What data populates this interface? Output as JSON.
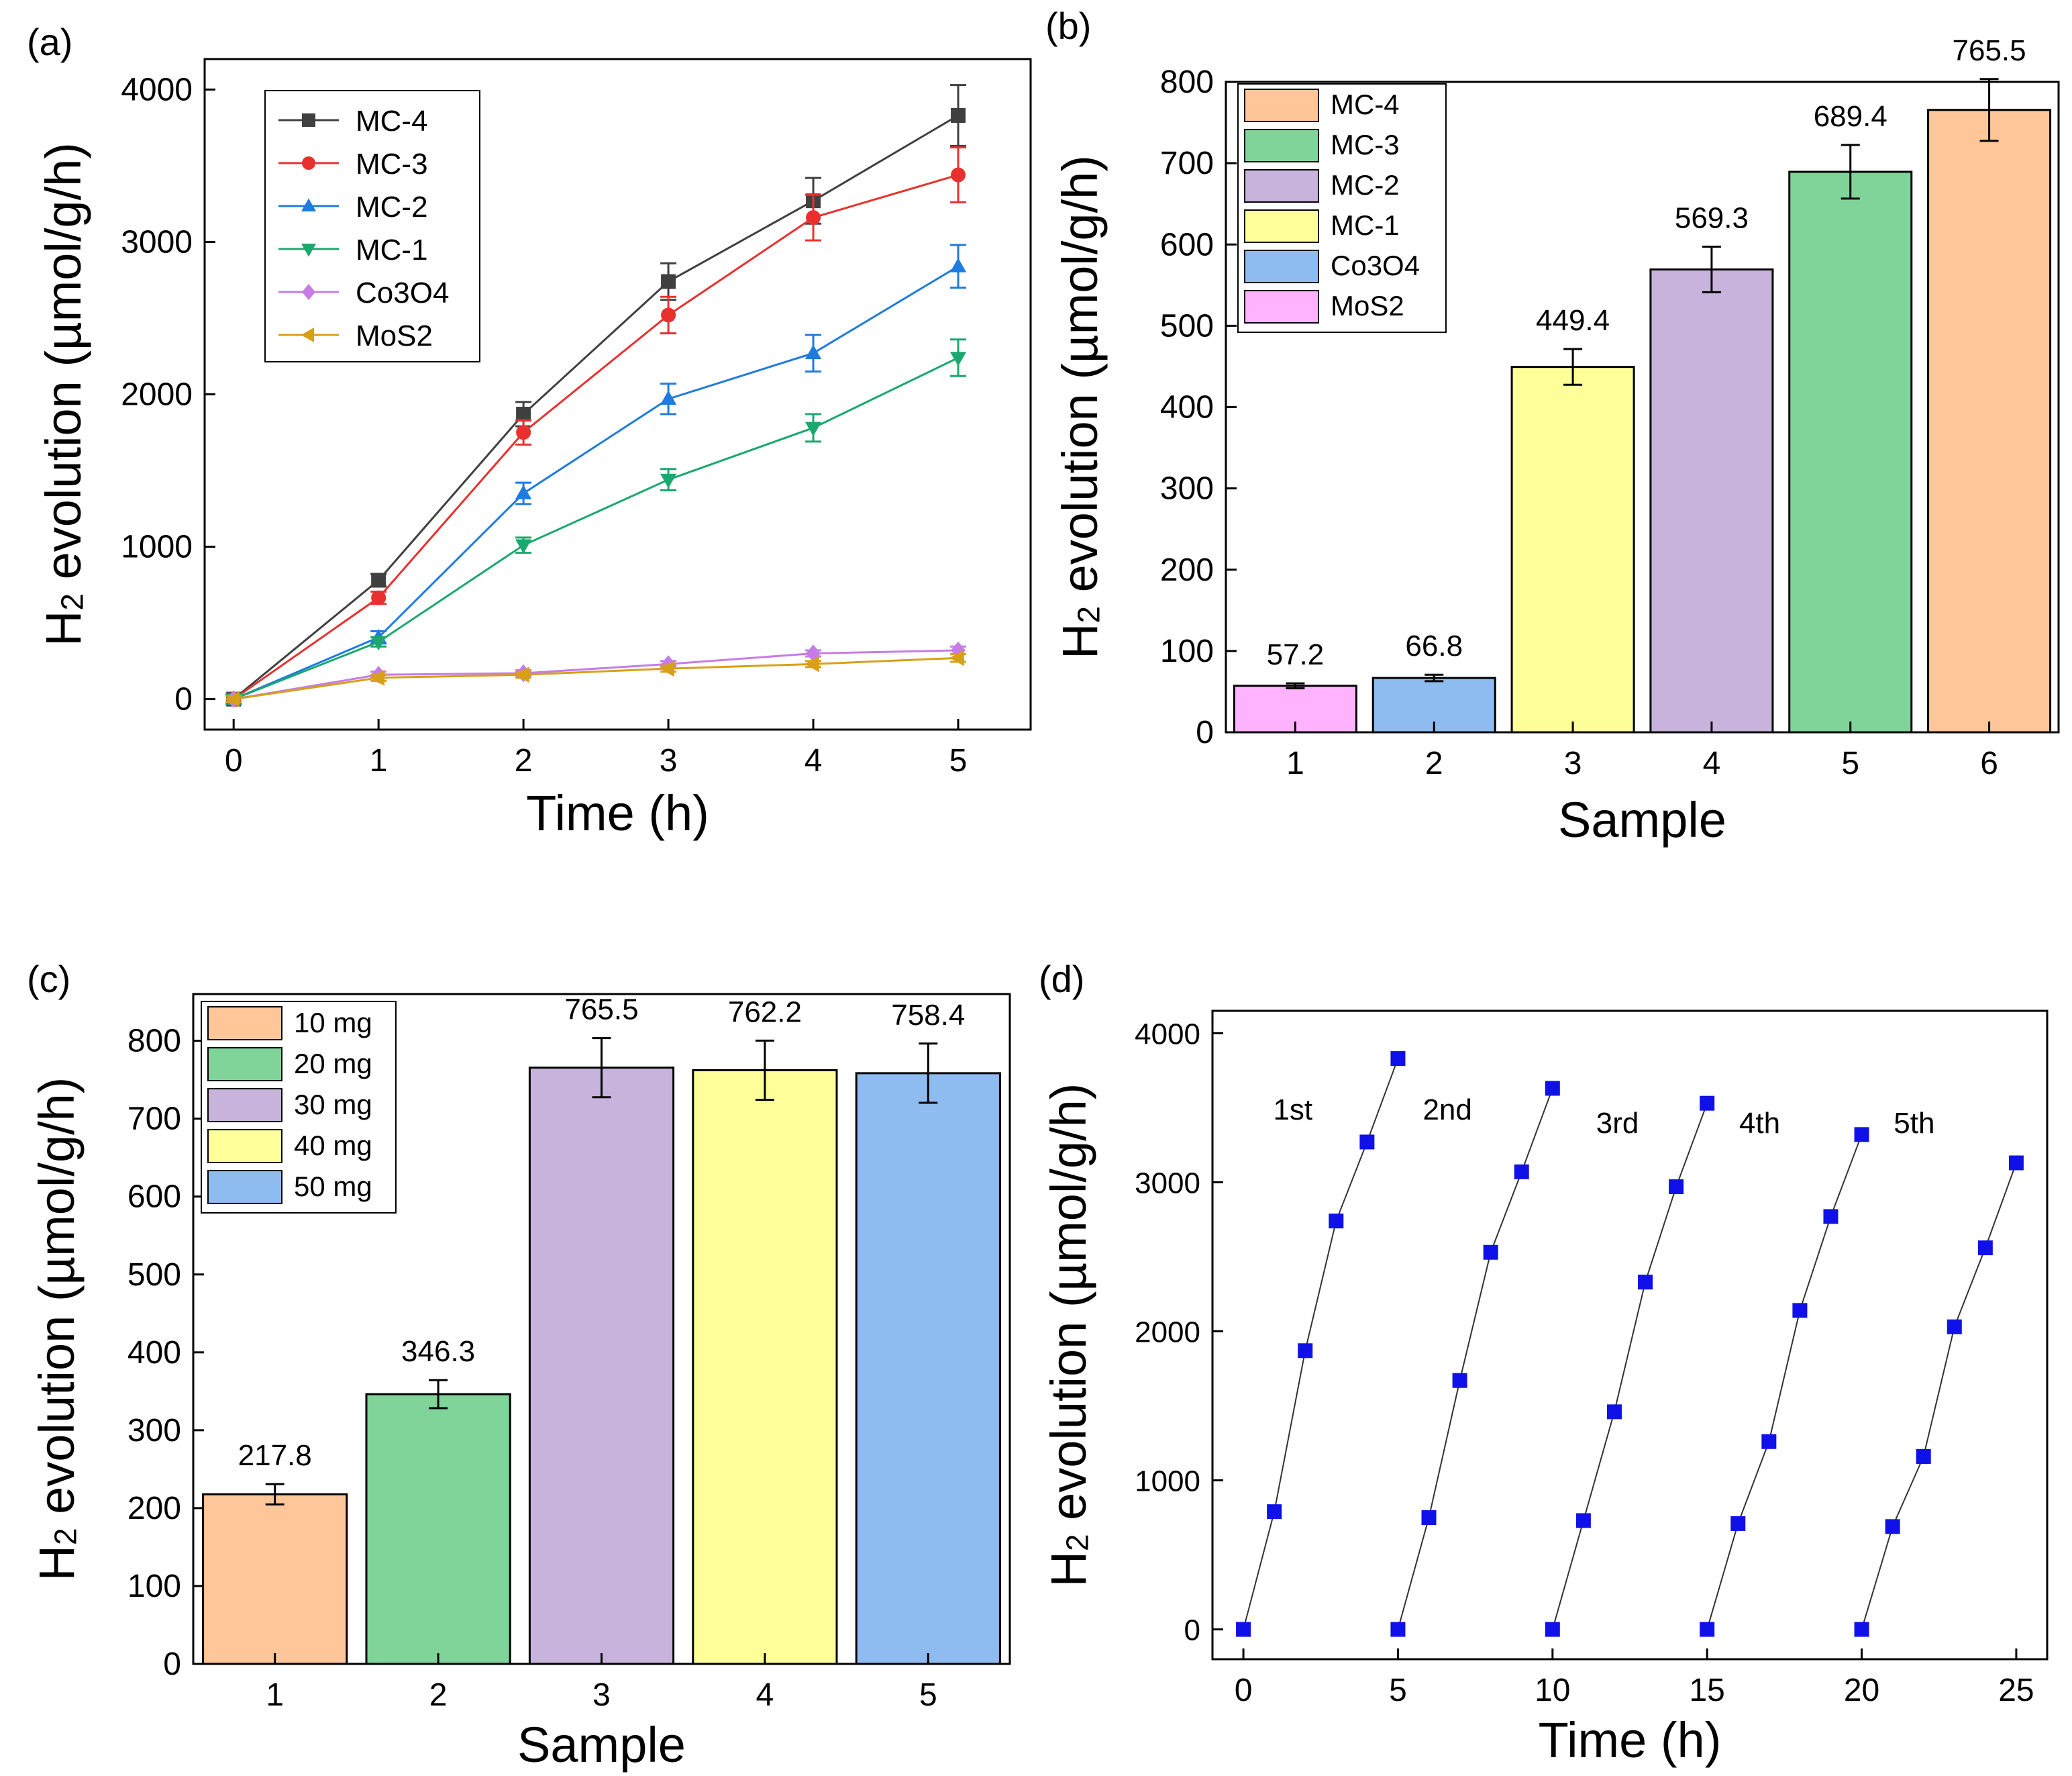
{
  "figure": {
    "panels": [
      {
        "label": "(a)",
        "chart_data": {
          "type": "line",
          "xlabel": "Time (h)",
          "ylabel_main": "H",
          "ylabel_sub": "2",
          "ylabel_rest": " evolution (µmol/g/h)",
          "xlim": [
            -0.2,
            5.5
          ],
          "ylim": [
            -200,
            4200
          ],
          "xticks": [
            0,
            1,
            2,
            3,
            4,
            5
          ],
          "yticks": [
            0,
            1000,
            2000,
            3000,
            4000
          ],
          "legend_position": "top-left",
          "x": [
            0,
            1,
            2,
            3,
            4,
            5
          ],
          "series": [
            {
              "name": "MC-4",
              "marker": "square",
              "color": "#404040",
              "values": [
                0,
                780,
                1870,
                2740,
                3270,
                3830
              ],
              "errors": [
                30,
                40,
                80,
                120,
                150,
                200
              ]
            },
            {
              "name": "MC-3",
              "marker": "circle",
              "color": "#e8312f",
              "values": [
                0,
                665,
                1750,
                2520,
                3160,
                3440
              ],
              "errors": [
                30,
                40,
                80,
                120,
                150,
                180
              ]
            },
            {
              "name": "MC-2",
              "marker": "triangle-up",
              "color": "#1e7be0",
              "values": [
                0,
                405,
                1350,
                1970,
                2270,
                2840
              ],
              "errors": [
                30,
                40,
                70,
                100,
                120,
                140
              ]
            },
            {
              "name": "MC-1",
              "marker": "triangle-down",
              "color": "#1aa86e",
              "values": [
                0,
                375,
                1010,
                1440,
                1780,
                2240
              ],
              "errors": [
                30,
                30,
                50,
                70,
                90,
                120
              ]
            },
            {
              "name": "Co3O4",
              "marker": "diamond",
              "color": "#c67ce6",
              "values": [
                0,
                160,
                170,
                230,
                300,
                320
              ],
              "errors": [
                20,
                20,
                20,
                20,
                20,
                25
              ]
            },
            {
              "name": "MoS2",
              "marker": "triangle-left",
              "color": "#d8a017",
              "values": [
                0,
                140,
                160,
                200,
                230,
                270
              ],
              "errors": [
                20,
                20,
                20,
                20,
                20,
                25
              ]
            }
          ]
        }
      },
      {
        "label": "(b)",
        "chart_data": {
          "type": "bar",
          "xlabel": "Sample",
          "ylabel_main": "H",
          "ylabel_sub": "2",
          "ylabel_rest": " evolution (µmol/g/h)",
          "ylim": [
            0,
            800
          ],
          "yticks": [
            0,
            100,
            200,
            300,
            400,
            500,
            600,
            700,
            800
          ],
          "categories": [
            "1",
            "2",
            "3",
            "4",
            "5",
            "6"
          ],
          "values": [
            57.2,
            66.8,
            449.4,
            569.3,
            689.4,
            765.5
          ],
          "value_labels": [
            "57.2",
            "66.8",
            "449.4",
            "569.3",
            "689.4",
            "765.5"
          ],
          "errors": [
            3,
            4,
            22,
            28,
            33,
            38
          ],
          "colors": [
            "#ffb3ff",
            "#8fbcf0",
            "#ffff99",
            "#c8b3dc",
            "#80d49a",
            "#ffc69a"
          ],
          "legend_position": "top-left",
          "legend": [
            {
              "name": "MC-4",
              "color": "#ffc69a"
            },
            {
              "name": "MC-3",
              "color": "#80d49a"
            },
            {
              "name": "MC-2",
              "color": "#c8b3dc"
            },
            {
              "name": "MC-1",
              "color": "#ffff99"
            },
            {
              "name": "Co3O4",
              "color": "#8fbcf0"
            },
            {
              "name": "MoS2",
              "color": "#ffb3ff"
            }
          ]
        }
      },
      {
        "label": "(c)",
        "chart_data": {
          "type": "bar",
          "xlabel": "Sample",
          "ylabel_main": "H",
          "ylabel_sub": "2",
          "ylabel_rest": " evolution (µmol/g/h)",
          "ylim": [
            0,
            860
          ],
          "yticks": [
            0,
            100,
            200,
            300,
            400,
            500,
            600,
            700,
            800
          ],
          "categories": [
            "1",
            "2",
            "3",
            "4",
            "5"
          ],
          "values": [
            217.8,
            346.3,
            765.5,
            762.2,
            758.4
          ],
          "value_labels": [
            "217.8",
            "346.3",
            "765.5",
            "762.2",
            "758.4"
          ],
          "errors": [
            13,
            18,
            38,
            38,
            38
          ],
          "colors": [
            "#ffc69a",
            "#80d49a",
            "#c8b3dc",
            "#ffff99",
            "#8fbcf0"
          ],
          "legend_position": "top-left",
          "legend": [
            {
              "name": "10 mg",
              "color": "#ffc69a"
            },
            {
              "name": "20 mg",
              "color": "#80d49a"
            },
            {
              "name": "30 mg",
              "color": "#c8b3dc"
            },
            {
              "name": "40 mg",
              "color": "#ffff99"
            },
            {
              "name": "50 mg",
              "color": "#8fbcf0"
            }
          ]
        }
      },
      {
        "label": "(d)",
        "chart_data": {
          "type": "scatter",
          "xlabel": "Time (h)",
          "ylabel_main": "H",
          "ylabel_sub": "2",
          "ylabel_rest": " evolution (µmol/g/h)",
          "xlim": [
            -1,
            26
          ],
          "ylim": [
            -200,
            4150
          ],
          "xticks": [
            0,
            5,
            10,
            15,
            20,
            25
          ],
          "yticks": [
            0,
            1000,
            2000,
            3000,
            4000
          ],
          "marker_color": "#1010e8",
          "cycles": [
            {
              "label": "1st",
              "label_x": 1.6,
              "label_y": 3420,
              "x": [
                0,
                1,
                2,
                3,
                4,
                5
              ],
              "values": [
                0,
                790,
                1870,
                2740,
                3270,
                3830
              ]
            },
            {
              "label": "2nd",
              "label_x": 6.6,
              "label_y": 3420,
              "x": [
                5,
                6,
                7,
                8,
                9,
                10
              ],
              "values": [
                0,
                750,
                1670,
                2530,
                3070,
                3630
              ]
            },
            {
              "label": "3rd",
              "label_x": 12.1,
              "label_y": 3330,
              "x": [
                10,
                11,
                12,
                13,
                14,
                15
              ],
              "values": [
                0,
                730,
                1460,
                2330,
                2970,
                3530
              ]
            },
            {
              "label": "4th",
              "label_x": 16.7,
              "label_y": 3330,
              "x": [
                15,
                16,
                17,
                18,
                19,
                20
              ],
              "values": [
                0,
                710,
                1260,
                2140,
                2770,
                3320
              ]
            },
            {
              "label": "5th",
              "label_x": 21.7,
              "label_y": 3330,
              "x": [
                20,
                21,
                22,
                23,
                24,
                25
              ],
              "values": [
                0,
                690,
                1160,
                2030,
                2560,
                3130
              ]
            }
          ]
        }
      }
    ]
  }
}
